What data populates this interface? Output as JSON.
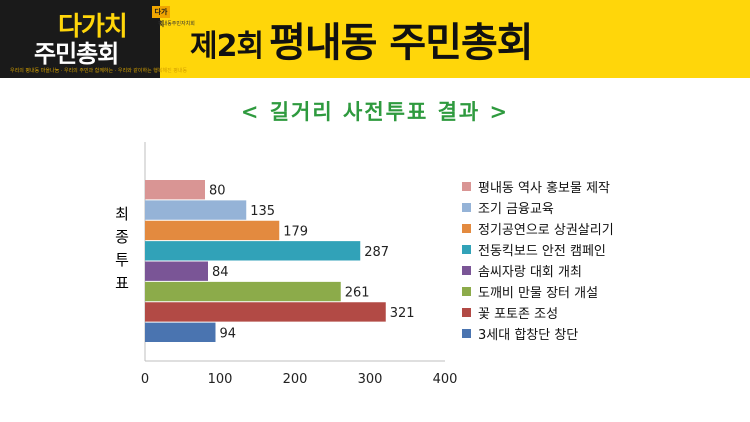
{
  "banner": {
    "logo_line1": "다가치",
    "logo_line2": "주민총회",
    "logo_tag": "다가치",
    "logo_sub": "평내동주민자치회",
    "slogan": "우리의 평내동 마을나눔 · 우리의 주민과 함께하는 · 우리와 같이하는 행복해진 평내동",
    "title_round": "제2회",
    "title_main": "평내동 주민총회",
    "colors": {
      "background": "#ffd60a",
      "dark": "#1a1a1a"
    }
  },
  "subtitle": "< 길거리 사전투표 결과 >",
  "chart_data": {
    "type": "bar",
    "orientation": "horizontal",
    "categories": [
      "평내동 역사 홍보물 제작",
      "조기 금융교육",
      "정기공연으로 상권살리기",
      "전동킥보드 안전 캠페인",
      "솜씨자랑 대회 개최",
      "도깨비 만물 장터 개설",
      "꽃 포토존 조성",
      "3세대 합창단 창단"
    ],
    "values": [
      80,
      135,
      179,
      287,
      84,
      261,
      321,
      94
    ],
    "colors": [
      "#d99594",
      "#95b3d7",
      "#e38a3f",
      "#31a2b8",
      "#7a5596",
      "#8cab4a",
      "#b24a45",
      "#4a74b0"
    ],
    "ylabel": "최종투표",
    "xlim": [
      0,
      400
    ],
    "xticks": [
      0,
      100,
      200,
      300,
      400
    ],
    "legend": "right",
    "grid": false
  }
}
